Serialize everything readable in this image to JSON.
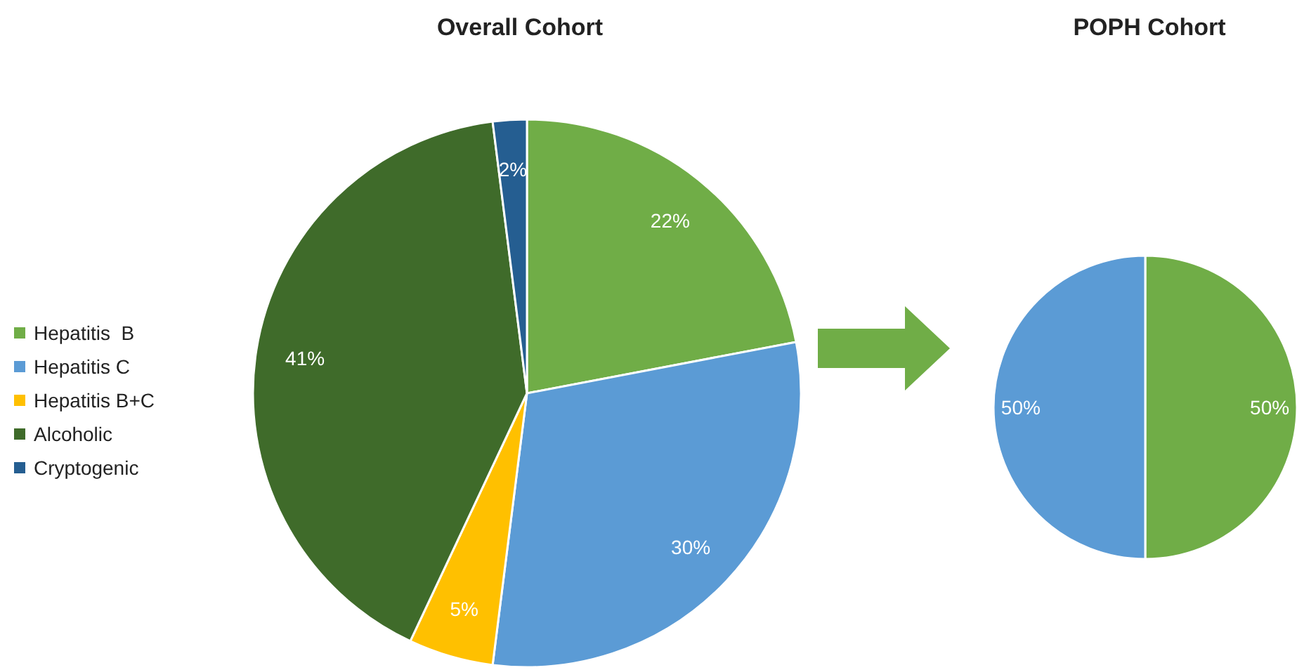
{
  "chart_data": [
    {
      "type": "pie",
      "title": "Overall Cohort",
      "categories": [
        "Hepatitis  B",
        "Hepatitis C",
        "Hepatitis B+C",
        "Alcoholic",
        "Cryptogenic"
      ],
      "values": [
        22,
        30,
        5,
        41,
        2
      ],
      "colors": [
        "#70ad47",
        "#5b9bd5",
        "#ffc000",
        "#3f6b2a",
        "#255e91"
      ],
      "value_labels": [
        "22%",
        "30%",
        "5%",
        "41%",
        "2%"
      ],
      "legend": "left"
    },
    {
      "type": "pie",
      "title": "POPH Cohort",
      "categories": [
        null,
        null
      ],
      "values": [
        50,
        50
      ],
      "colors": [
        "#70ad47",
        "#5b9bd5"
      ],
      "value_labels": [
        "50%",
        "50%"
      ],
      "legend": false
    }
  ]
}
